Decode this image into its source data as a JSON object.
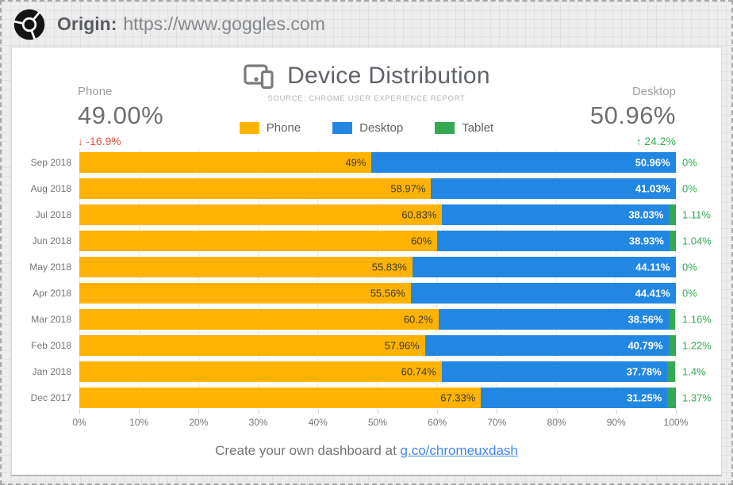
{
  "topbar": {
    "origin_label": "Origin:",
    "origin_url": "https://www.goggles.com"
  },
  "header": {
    "title": "Device Distribution",
    "subtitle": "SOURCE: CHROME USER EXPERIENCE REPORT"
  },
  "stats": {
    "left": {
      "label": "Phone",
      "value": "49.00%",
      "arrow": "↓",
      "delta": "-16.9%",
      "color": "#e8503f"
    },
    "right": {
      "label": "Desktop",
      "value": "50.96%",
      "arrow": "↑",
      "delta": "24.2%",
      "color": "#34A853"
    }
  },
  "legend": [
    {
      "label": "Phone",
      "color": "#FFB300"
    },
    {
      "label": "Desktop",
      "color": "#2287E2"
    },
    {
      "label": "Tablet",
      "color": "#34A853"
    }
  ],
  "chart_data": {
    "type": "bar",
    "orientation": "horizontal",
    "stacked": true,
    "title": "Device Distribution",
    "categories": [
      "Sep 2018",
      "Aug 2018",
      "Jul 2018",
      "Jun 2018",
      "May 2018",
      "Apr 2018",
      "Mar 2018",
      "Feb 2018",
      "Jan 2018",
      "Dec 2017"
    ],
    "series": [
      {
        "name": "Phone",
        "color": "#FFB300",
        "values": [
          49,
          58.97,
          60.83,
          60,
          55.83,
          55.56,
          60.2,
          57.96,
          60.74,
          67.33
        ],
        "labels": [
          "49%",
          "58.97%",
          "60.83%",
          "60%",
          "55.83%",
          "55.56%",
          "60.2%",
          "57.96%",
          "60.74%",
          "67.33%"
        ]
      },
      {
        "name": "Desktop",
        "color": "#2287E2",
        "values": [
          50.96,
          41.03,
          38.03,
          38.93,
          44.11,
          44.41,
          38.56,
          40.79,
          37.78,
          31.25
        ],
        "labels": [
          "50.96%",
          "41.03%",
          "38.03%",
          "38.93%",
          "44.11%",
          "44.41%",
          "38.56%",
          "40.79%",
          "37.78%",
          "31.25%"
        ]
      },
      {
        "name": "Tablet",
        "color": "#34A853",
        "values": [
          0,
          0,
          1.11,
          1.04,
          0,
          0,
          1.16,
          1.22,
          1.4,
          1.37
        ],
        "labels": [
          "0%",
          "0%",
          "1.11%",
          "1.04%",
          "0%",
          "0%",
          "1.16%",
          "1.22%",
          "1.4%",
          "1.37%"
        ]
      }
    ],
    "x_ticks": [
      "0%",
      "10%",
      "20%",
      "30%",
      "40%",
      "50%",
      "60%",
      "70%",
      "80%",
      "90%",
      "100%"
    ],
    "xlim": [
      0,
      100
    ],
    "grid": true,
    "legend_position": "top-center"
  },
  "footer": {
    "text": "Create your own dashboard at",
    "link": "g.co/chromeuxdash"
  }
}
